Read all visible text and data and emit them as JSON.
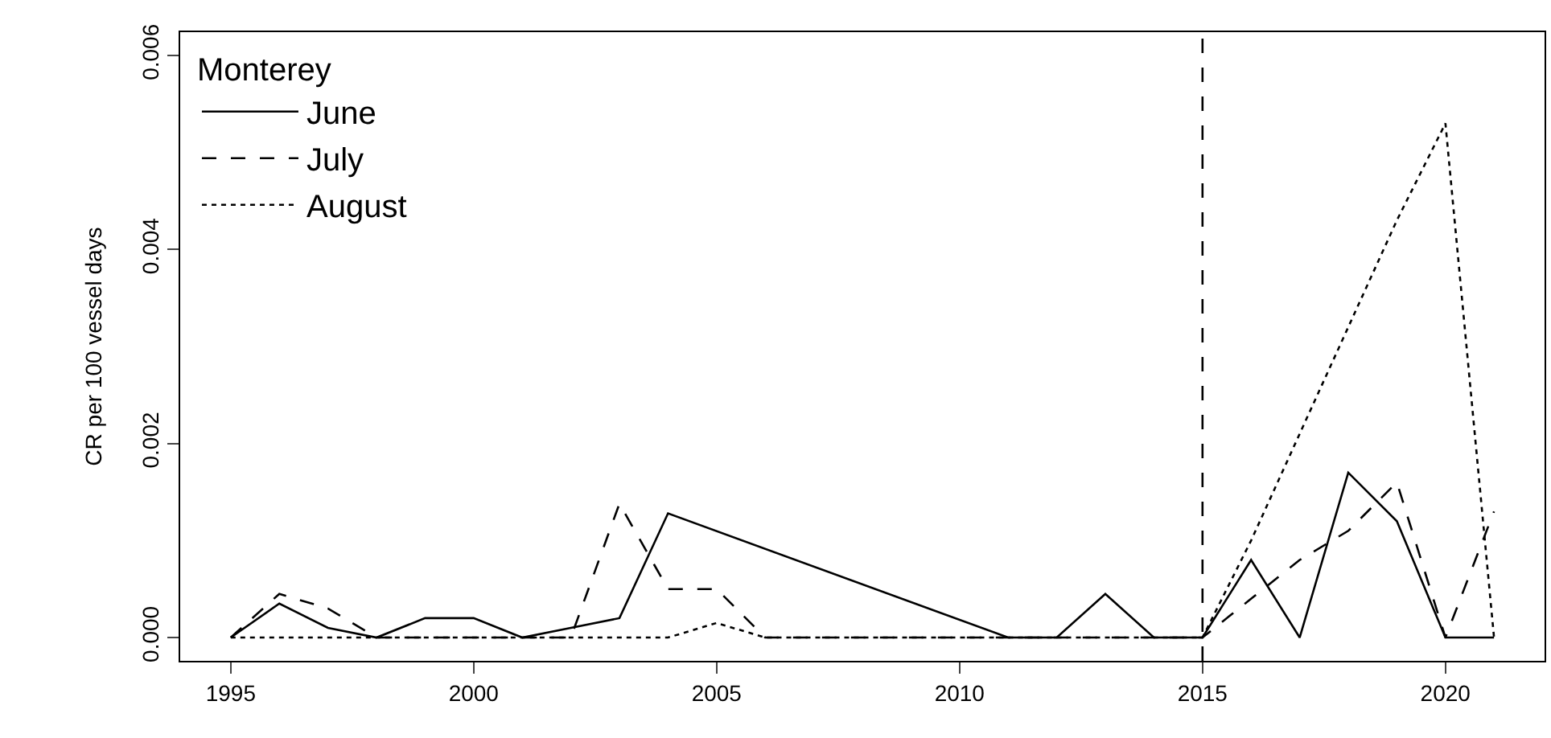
{
  "chart_data": {
    "type": "line",
    "ylabel": "CR per 100 vessel days",
    "legend_title": "Monterey",
    "legend": "top left",
    "grid": false,
    "marker": "none",
    "xlim": [
      1993.96,
      2022.04
    ],
    "xticks": [
      1995,
      2000,
      2005,
      2010,
      2015,
      2020
    ],
    "ylim": [
      -0.00024,
      0.00624
    ],
    "yticks": [
      {
        "value": 0,
        "label": "0.000"
      },
      {
        "value": 0.002,
        "label": "0.002"
      },
      {
        "value": 0.004,
        "label": "0.004"
      },
      {
        "value": 0.006,
        "label": "0.006"
      }
    ],
    "ref_lines": [
      {
        "axis": "x",
        "value": 2015,
        "line_style": "dashed",
        "color": "#000000"
      }
    ],
    "series": [
      {
        "name": "June",
        "color": "#000000",
        "line_style": "solid",
        "x": [
          1995,
          1996,
          1997,
          1998,
          1999,
          2000,
          2001,
          2002,
          2003,
          2004,
          2011,
          2012,
          2013,
          2014,
          2015,
          2016,
          2017,
          2018,
          2019,
          2020,
          2021
        ],
        "values": [
          0,
          0.00035,
          0.0001,
          0,
          0.0002,
          0.0002,
          0,
          0.0001,
          0.0002,
          0.00128,
          0,
          0,
          0.00045,
          0,
          0,
          0.0008,
          0,
          0.0017,
          0.0012,
          0,
          0
        ]
      },
      {
        "name": "July",
        "color": "#000000",
        "line_style": "dashed",
        "x": [
          1995,
          1996,
          1997,
          1998,
          1999,
          2000,
          2001,
          2002,
          2003,
          2004,
          2005,
          2006,
          2007,
          2008,
          2009,
          2010,
          2011,
          2012,
          2013,
          2014,
          2015,
          2016,
          2017,
          2018,
          2019,
          2020,
          2021
        ],
        "values": [
          0,
          0.00045,
          0.0003,
          0,
          0,
          0,
          0,
          0,
          0.00138,
          0.0005,
          0.0005,
          0,
          0,
          0,
          0,
          0,
          0,
          0,
          0,
          0,
          0,
          0.0004,
          0.0008,
          0.0011,
          0.0016,
          0,
          0.0013
        ]
      },
      {
        "name": "August",
        "color": "#000000",
        "line_style": "dotted",
        "x": [
          1995,
          1996,
          1997,
          1998,
          1999,
          2000,
          2001,
          2002,
          2003,
          2004,
          2005,
          2006,
          2007,
          2008,
          2009,
          2010,
          2011,
          2012,
          2013,
          2014,
          2015,
          2016,
          2017,
          2018,
          2019,
          2020,
          2021
        ],
        "values": [
          0,
          0,
          0,
          0,
          0,
          0,
          0,
          0,
          0,
          0,
          0.00015,
          0,
          0,
          0,
          0,
          0,
          0,
          0,
          0,
          0,
          0,
          0.001,
          0.0021,
          0.0032,
          0.0043,
          0.0053,
          0
        ]
      }
    ]
  }
}
